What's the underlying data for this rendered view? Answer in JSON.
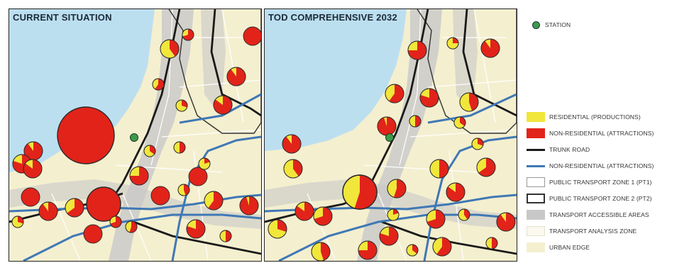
{
  "panels": {
    "current": {
      "title": "CURRENT SITUATION"
    },
    "tod": {
      "title": "TOD COMPREHENSIVE 2032"
    }
  },
  "legend": {
    "station": "STATION",
    "residential": "RESIDENTIAL (PRODUCTIONS)",
    "non_residential": "NON-RESIDENTIAL (ATTRACTIONS)",
    "trunk_road": "TRUNK ROAD",
    "non_residential_line": "NON-RESIDENTIAL (ATTRACTIONS)",
    "ptz1": "PUBLIC TRANSPORT ZONE 1 (PT1)",
    "ptz2": "PUBLIC TRANSPORT ZONE 2 (PT2)",
    "accessible": "TRANSPORT ACCESSIBLE AREAS",
    "analysis_zone": "TRANSPORT ANALYSIS ZONE",
    "urban_edge": "URBAN EDGE"
  },
  "colors": {
    "sea": "#bcdff0",
    "land": "#f4efcf",
    "accessible": "#c8c8c8",
    "residential": "#f1e63a",
    "non_residential": "#e2231a",
    "trunk_road": "#1a1a1a",
    "blue_route": "#3f78b5",
    "station": "#3c9a4a"
  },
  "map_symbols": {
    "current": [
      {
        "share": 1.0,
        "size": "xl"
      },
      {
        "share": 1.0,
        "size": "l"
      },
      {
        "share": 0.85,
        "size": "m"
      },
      {
        "share": 0.4,
        "size": "m"
      },
      {
        "share": 1.0,
        "size": "m"
      },
      {
        "share": 0.7,
        "size": "s"
      },
      {
        "share": 0.6,
        "size": "s"
      },
      {
        "share": 0.9,
        "size": "m"
      },
      {
        "share": 0.3,
        "size": "s"
      },
      {
        "share": 0.8,
        "size": "m"
      },
      {
        "share": 0.5,
        "size": "s"
      },
      {
        "share": 1.0,
        "size": "m"
      },
      {
        "share": 0.75,
        "size": "m"
      },
      {
        "share": 0.2,
        "size": "s"
      },
      {
        "share": 0.95,
        "size": "m"
      },
      {
        "share": 0.6,
        "size": "m"
      },
      {
        "share": 0.45,
        "size": "s"
      },
      {
        "share": 1.0,
        "size": "m"
      },
      {
        "share": 0.85,
        "size": "m"
      },
      {
        "share": 0.3,
        "size": "s"
      },
      {
        "share": 0.7,
        "size": "s"
      },
      {
        "share": 0.9,
        "size": "m"
      },
      {
        "share": 0.55,
        "size": "s"
      },
      {
        "share": 1.0,
        "size": "m"
      },
      {
        "share": 0.8,
        "size": "m"
      },
      {
        "share": 0.35,
        "size": "s"
      },
      {
        "share": 0.65,
        "size": "m"
      },
      {
        "share": 1.0,
        "size": "m"
      },
      {
        "share": 0.5,
        "size": "s"
      },
      {
        "share": 0.9,
        "size": "m"
      }
    ],
    "tod": [
      {
        "share": 0.55,
        "size": "l"
      },
      {
        "share": 0.9,
        "size": "m"
      },
      {
        "share": 0.4,
        "size": "m"
      },
      {
        "share": 0.85,
        "size": "m"
      },
      {
        "share": 0.3,
        "size": "m"
      },
      {
        "share": 0.7,
        "size": "m"
      },
      {
        "share": 0.5,
        "size": "s"
      },
      {
        "share": 0.95,
        "size": "m"
      },
      {
        "share": 0.35,
        "size": "s"
      },
      {
        "share": 0.8,
        "size": "m"
      },
      {
        "share": 0.6,
        "size": "m"
      },
      {
        "share": 0.25,
        "size": "s"
      },
      {
        "share": 0.75,
        "size": "m"
      },
      {
        "share": 0.45,
        "size": "m"
      },
      {
        "share": 0.9,
        "size": "m"
      },
      {
        "share": 0.3,
        "size": "s"
      },
      {
        "share": 0.65,
        "size": "m"
      },
      {
        "share": 0.5,
        "size": "m"
      },
      {
        "share": 0.85,
        "size": "m"
      },
      {
        "share": 0.4,
        "size": "s"
      },
      {
        "share": 0.7,
        "size": "m"
      },
      {
        "share": 0.55,
        "size": "m"
      },
      {
        "share": 0.2,
        "size": "s"
      },
      {
        "share": 0.8,
        "size": "m"
      },
      {
        "share": 0.6,
        "size": "m"
      },
      {
        "share": 0.35,
        "size": "s"
      },
      {
        "share": 0.75,
        "size": "m"
      },
      {
        "share": 0.45,
        "size": "m"
      },
      {
        "share": 0.9,
        "size": "m"
      },
      {
        "share": 0.5,
        "size": "s"
      }
    ]
  }
}
